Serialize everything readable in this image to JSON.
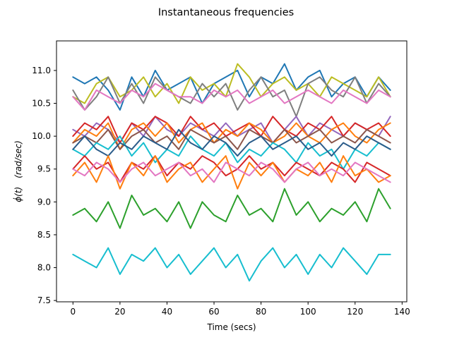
{
  "chart_data": {
    "type": "line",
    "title": "Instantaneous frequencies",
    "xlabel": "Time (secs)",
    "ylabel_math": "ϕ̇(t)",
    "ylabel_units": "(rad/sec)",
    "xlim": [
      -7,
      142
    ],
    "ylim": [
      7.48,
      11.45
    ],
    "xticks": [
      0,
      20,
      40,
      60,
      80,
      100,
      120,
      140
    ],
    "yticks": [
      7.5,
      8.0,
      8.5,
      9.0,
      9.5,
      10.0,
      10.5,
      11.0
    ],
    "xtick_labels": [
      "0",
      "20",
      "40",
      "60",
      "80",
      "100",
      "120",
      "140"
    ],
    "ytick_labels": [
      "7.5",
      "8.0",
      "8.5",
      "9.0",
      "9.5",
      "10.0",
      "10.5",
      "11.0"
    ],
    "grid": false,
    "legend": "none",
    "x": [
      0,
      5,
      10,
      15,
      20,
      25,
      30,
      35,
      40,
      45,
      50,
      55,
      60,
      65,
      70,
      75,
      80,
      85,
      90,
      95,
      100,
      105,
      110,
      115,
      120,
      125,
      130,
      135
    ],
    "series": [
      {
        "color": "#1f77b4",
        "values": [
          10.9,
          10.8,
          10.9,
          10.7,
          10.4,
          10.9,
          10.6,
          11.0,
          10.7,
          10.8,
          10.9,
          10.5,
          10.8,
          10.9,
          11.0,
          10.6,
          10.9,
          10.8,
          11.1,
          10.7,
          10.9,
          11.0,
          10.6,
          10.8,
          10.9,
          10.6,
          10.9,
          10.7
        ]
      },
      {
        "color": "#bcbd22",
        "values": [
          10.6,
          10.5,
          10.8,
          10.9,
          10.6,
          10.7,
          10.9,
          10.6,
          10.8,
          10.5,
          10.9,
          10.7,
          10.8,
          10.6,
          11.1,
          10.9,
          10.6,
          10.8,
          10.9,
          10.7,
          10.8,
          10.6,
          10.9,
          10.8,
          10.7,
          10.6,
          10.9,
          10.6
        ]
      },
      {
        "color": "#7f7f7f",
        "values": [
          10.7,
          10.4,
          10.6,
          10.9,
          10.5,
          10.8,
          10.5,
          10.9,
          10.7,
          10.6,
          10.5,
          10.8,
          10.6,
          10.8,
          10.4,
          10.7,
          10.9,
          10.6,
          10.7,
          10.3,
          10.8,
          10.9,
          10.7,
          10.6,
          10.9,
          10.5,
          10.8,
          10.6
        ]
      },
      {
        "color": "#e377c2",
        "values": [
          10.6,
          10.4,
          10.7,
          10.6,
          10.5,
          10.7,
          10.6,
          10.8,
          10.7,
          10.6,
          10.6,
          10.5,
          10.7,
          10.6,
          10.7,
          10.5,
          10.6,
          10.7,
          10.5,
          10.6,
          10.7,
          10.6,
          10.5,
          10.7,
          10.6,
          10.5,
          10.7,
          10.6
        ]
      },
      {
        "color": "#9467bd",
        "values": [
          10.1,
          10.0,
          10.2,
          10.1,
          9.9,
          10.2,
          10.0,
          10.3,
          10.1,
          10.0,
          10.2,
          10.1,
          10.0,
          10.2,
          10.0,
          10.1,
          10.2,
          9.9,
          10.1,
          10.3,
          10.0,
          10.2,
          10.1,
          10.0,
          10.2,
          10.1,
          10.0,
          10.3
        ]
      },
      {
        "color": "#d62728",
        "values": [
          10.0,
          10.2,
          10.1,
          10.3,
          9.9,
          10.2,
          10.1,
          10.3,
          10.2,
          10.0,
          10.3,
          10.1,
          10.2,
          10.0,
          10.1,
          10.2,
          10.0,
          10.3,
          10.1,
          10.0,
          10.2,
          10.1,
          10.3,
          10.0,
          10.2,
          10.1,
          10.2,
          10.0
        ]
      },
      {
        "color": "#ff7f0e",
        "values": [
          9.9,
          10.1,
          10.0,
          10.2,
          9.8,
          10.1,
          10.2,
          10.0,
          10.2,
          9.9,
          10.1,
          10.2,
          9.9,
          10.1,
          10.0,
          10.2,
          10.1,
          9.9,
          10.0,
          10.2,
          10.0,
          9.9,
          10.1,
          10.2,
          10.0,
          9.9,
          10.1,
          10.2
        ]
      },
      {
        "color": "#8c564b",
        "values": [
          9.9,
          10.0,
          9.9,
          10.1,
          9.8,
          10.0,
          10.1,
          9.9,
          10.0,
          9.8,
          10.1,
          10.0,
          9.9,
          10.0,
          9.8,
          10.1,
          10.0,
          9.9,
          10.1,
          9.9,
          10.0,
          10.1,
          9.9,
          10.0,
          9.9,
          10.1,
          10.0,
          9.9
        ]
      },
      {
        "color": "#17becf",
        "values": [
          9.8,
          9.7,
          9.9,
          9.8,
          10.0,
          9.7,
          9.9,
          9.6,
          9.8,
          9.7,
          10.0,
          9.8,
          9.7,
          9.9,
          9.6,
          9.8,
          9.7,
          9.9,
          9.8,
          9.6,
          9.9,
          9.7,
          9.8,
          9.5,
          9.8,
          9.7,
          9.9,
          9.8
        ]
      },
      {
        "color": "#2b5c8a",
        "values": [
          9.8,
          10.0,
          9.8,
          9.7,
          9.9,
          9.8,
          10.0,
          9.9,
          9.8,
          10.1,
          9.9,
          9.8,
          10.0,
          9.9,
          9.7,
          9.9,
          10.0,
          9.8,
          9.9,
          10.0,
          9.8,
          9.9,
          9.7,
          9.9,
          9.8,
          10.0,
          9.9,
          9.8
        ]
      },
      {
        "color": "#d62728",
        "values": [
          9.5,
          9.7,
          9.5,
          9.6,
          9.3,
          9.6,
          9.5,
          9.7,
          9.4,
          9.6,
          9.5,
          9.7,
          9.6,
          9.4,
          9.5,
          9.7,
          9.5,
          9.6,
          9.4,
          9.6,
          9.5,
          9.4,
          9.6,
          9.5,
          9.3,
          9.6,
          9.5,
          9.4
        ]
      },
      {
        "color": "#ff7f0e",
        "values": [
          9.4,
          9.6,
          9.3,
          9.7,
          9.2,
          9.6,
          9.4,
          9.7,
          9.3,
          9.5,
          9.6,
          9.3,
          9.5,
          9.7,
          9.2,
          9.6,
          9.4,
          9.6,
          9.3,
          9.5,
          9.4,
          9.6,
          9.3,
          9.7,
          9.4,
          9.5,
          9.3,
          9.4
        ]
      },
      {
        "color": "#e377c2",
        "values": [
          9.5,
          9.4,
          9.6,
          9.5,
          9.3,
          9.5,
          9.6,
          9.4,
          9.5,
          9.6,
          9.4,
          9.5,
          9.3,
          9.6,
          9.5,
          9.4,
          9.6,
          9.5,
          9.3,
          9.5,
          9.6,
          9.4,
          9.5,
          9.4,
          9.6,
          9.5,
          9.4,
          9.3
        ]
      },
      {
        "color": "#2ca02c",
        "values": [
          8.8,
          8.9,
          8.7,
          9.0,
          8.6,
          9.1,
          8.8,
          8.9,
          8.7,
          9.0,
          8.6,
          9.0,
          8.8,
          8.7,
          9.1,
          8.8,
          8.9,
          8.7,
          9.2,
          8.8,
          9.0,
          8.7,
          8.9,
          8.8,
          9.0,
          8.7,
          9.2,
          8.9
        ]
      },
      {
        "color": "#17becf",
        "values": [
          8.2,
          8.1,
          8.0,
          8.3,
          7.9,
          8.2,
          8.1,
          8.3,
          8.0,
          8.2,
          7.9,
          8.1,
          8.3,
          8.0,
          8.2,
          7.8,
          8.1,
          8.3,
          8.0,
          8.2,
          7.9,
          8.2,
          8.0,
          8.3,
          8.1,
          7.9,
          8.2,
          8.2
        ]
      }
    ]
  }
}
